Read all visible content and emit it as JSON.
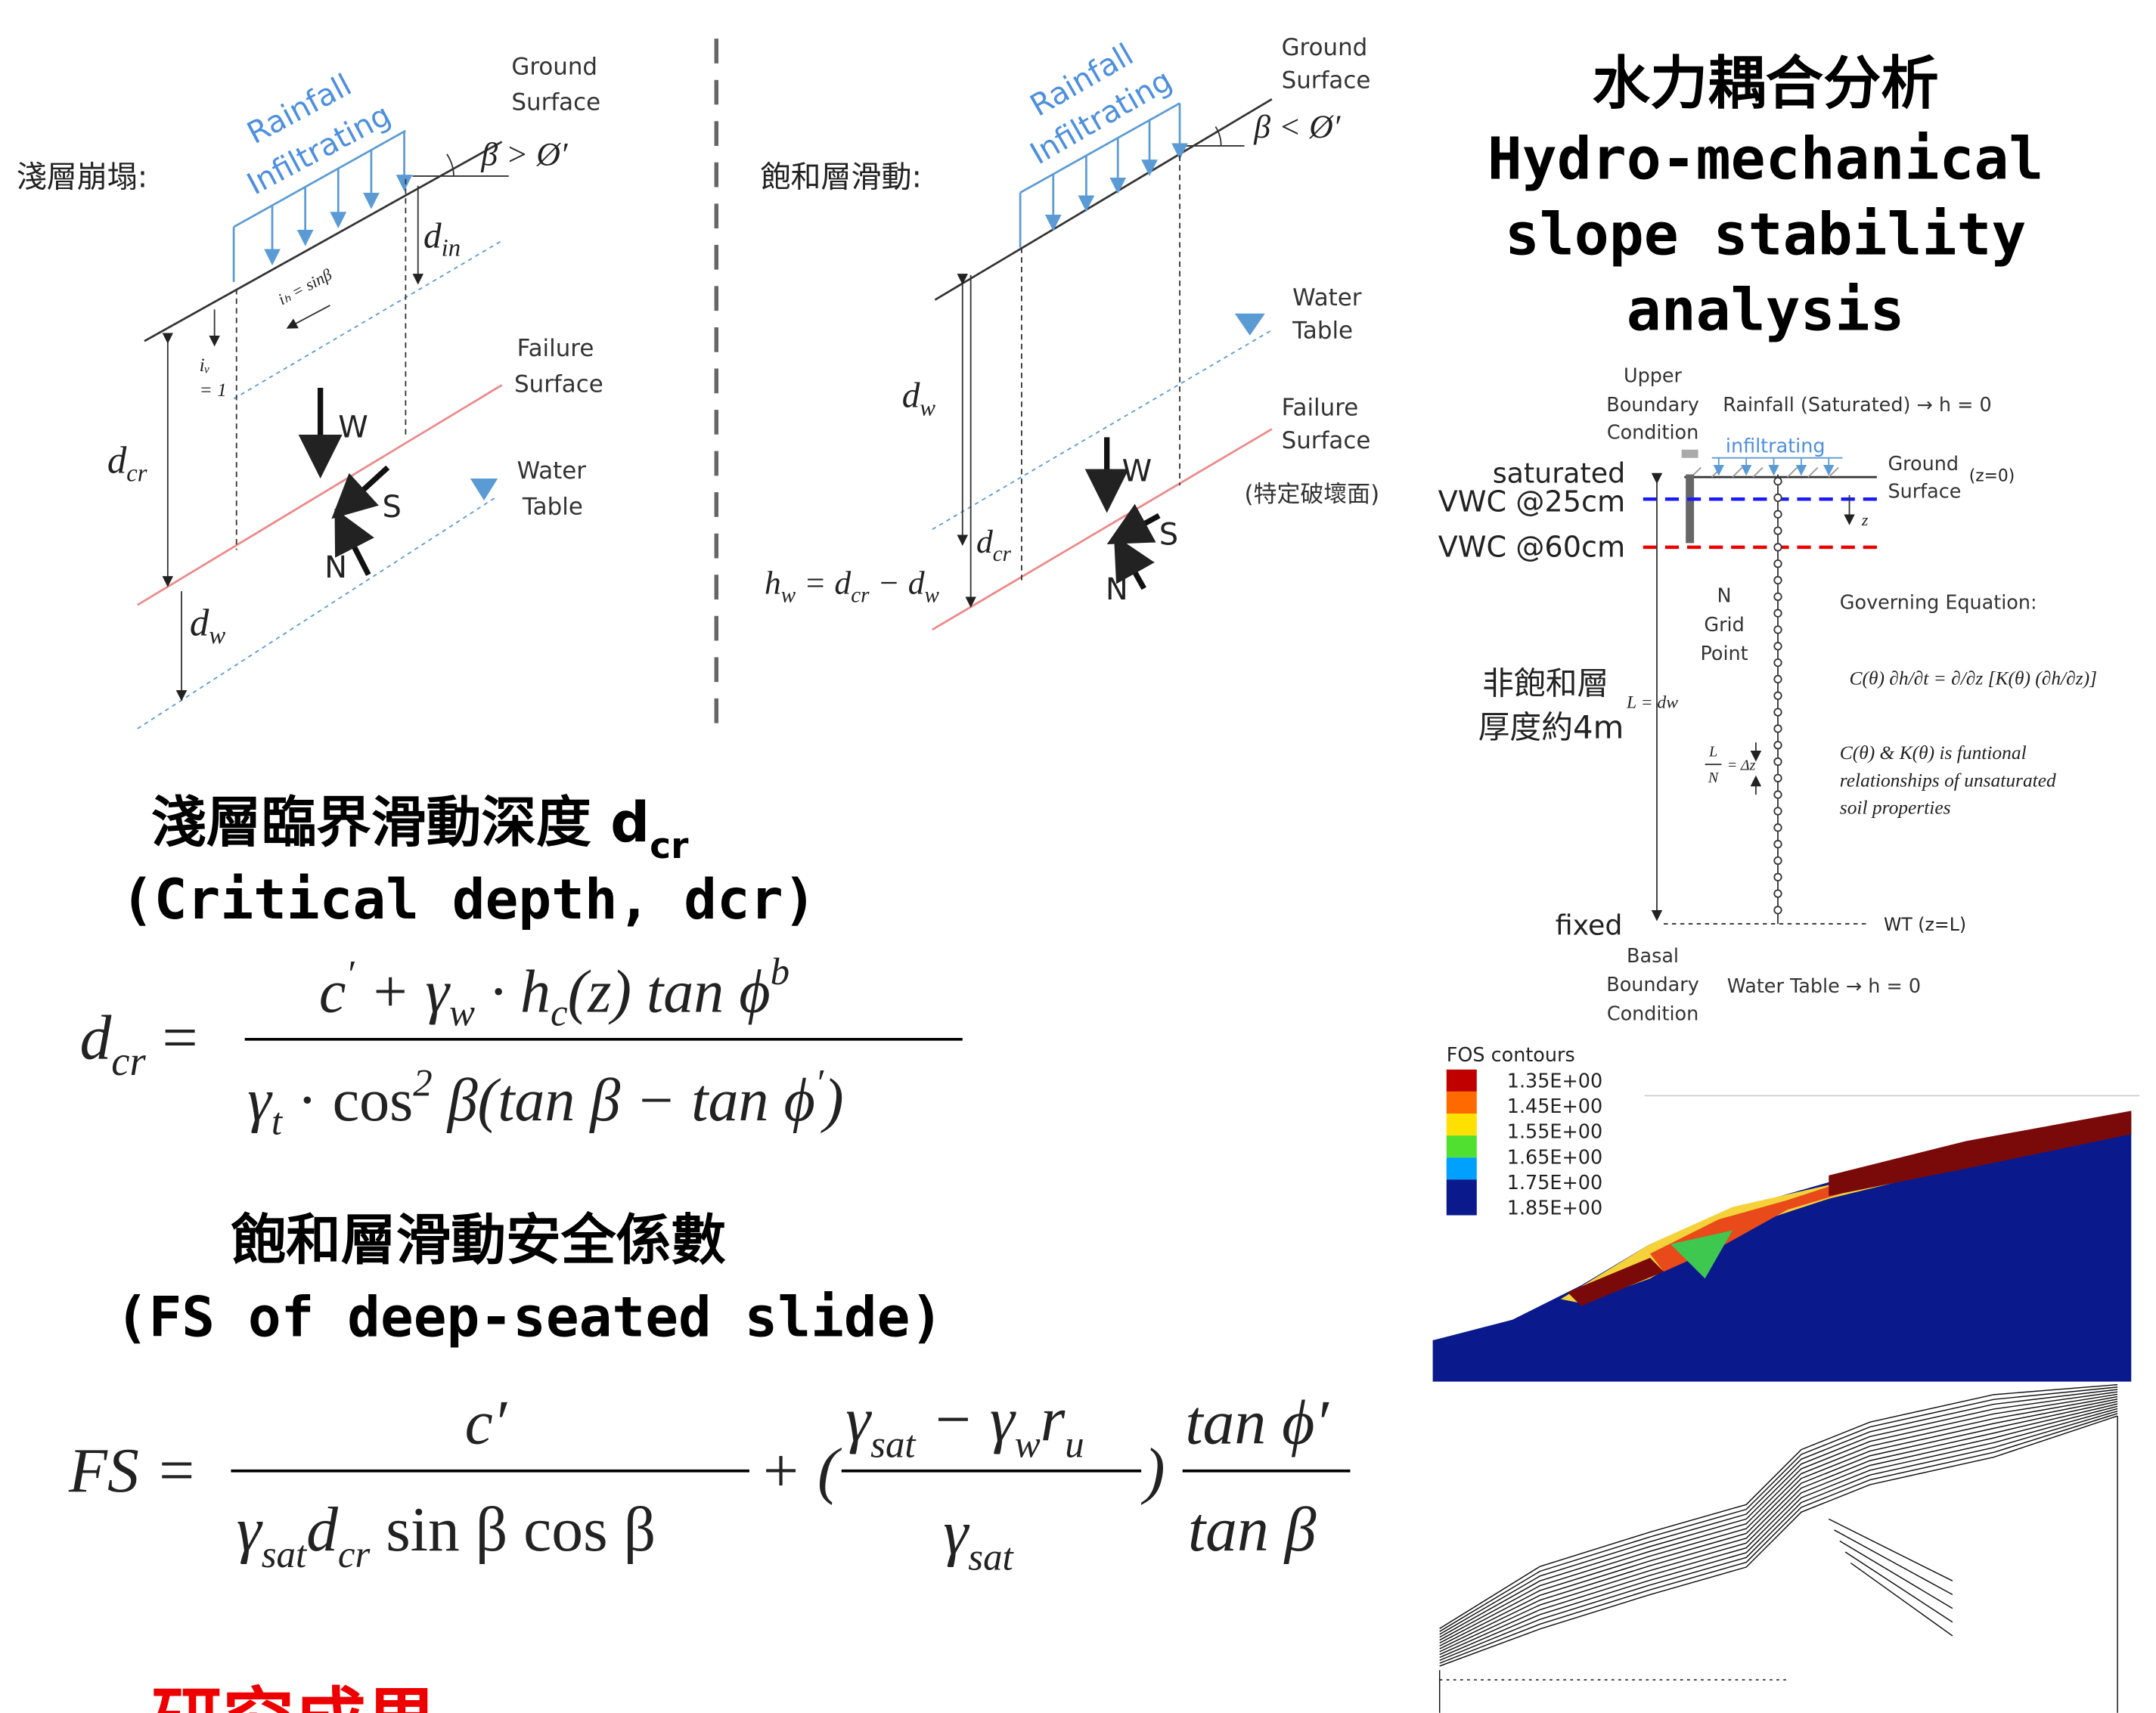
{
  "shallow_diagram": {
    "label": "淺層崩塌:",
    "rainfall": "Rainfall",
    "infiltrating": "Infiltrating",
    "ground": "Ground",
    "surface": "Surface",
    "angle": "β > Ø′",
    "d_in": [
      "d",
      "in"
    ],
    "i_h": "iₕ = sinβ",
    "i_v": [
      "iᵥ",
      "= 1"
    ],
    "failure": "Failure",
    "failure_surface": "Surface",
    "water": "Water",
    "table": "Table",
    "w": "W",
    "s": "S",
    "n": "N",
    "d_cr": [
      "d",
      "cr"
    ],
    "d_w": [
      "d",
      "w"
    ]
  },
  "saturated_diagram": {
    "label": "飽和層滑動:",
    "rainfall": "Rainfall",
    "infiltrating": "Infiltrating",
    "ground": "Ground",
    "surface": "Surface",
    "angle": "β < Ø′",
    "water": "Water",
    "table": "Table",
    "failure": "Failure",
    "failure_surface": "Surface",
    "specific": "(特定破壞面)",
    "d_w": [
      "d",
      "w"
    ],
    "d_cr": [
      "d",
      "cr"
    ],
    "w": "W",
    "s": "S",
    "n": "N",
    "h_w": [
      "h",
      "w",
      " = d",
      "cr",
      " − d",
      "w"
    ]
  },
  "title": [
    "水力耦合分析",
    "Hydro-mechanical",
    "slope stability",
    "analysis"
  ],
  "column_model": {
    "upper": [
      "Upper",
      "Boundary",
      "Condition"
    ],
    "rainfall": "Rainfall (Saturated) → h = 0",
    "infiltrating": "infiltrating",
    "ground": [
      "Ground",
      "Surface"
    ],
    "z0": "(z=0)",
    "saturated": "saturated",
    "vwc25": "VWC @25cm",
    "vwc60": "VWC @60cm",
    "z": "z",
    "grid": [
      "N",
      "Grid",
      "Point"
    ],
    "governing": "Governing Equation:",
    "equation": "C(θ) ∂h/∂t = ∂/∂z [K(θ) (∂h/∂z)]",
    "unsat": [
      "非飽和層",
      "厚度約4m"
    ],
    "l_dw": "L = dw",
    "dz": [
      "L",
      "N",
      "= Δz"
    ],
    "note": [
      "C(θ) & K(θ) is funtional",
      "relationships of unsaturated",
      "soil properties"
    ],
    "fixed": "fixed",
    "wt": "WT (z=L)",
    "basal": [
      "Basal",
      "Boundary",
      "Condition"
    ],
    "water_table": "Water Table → h = 0"
  },
  "fos": {
    "title": "FOS contours",
    "levels": [
      "1.35E+00",
      "1.45E+00",
      "1.55E+00",
      "1.65E+00",
      "1.75E+00",
      "1.85E+00"
    ]
  },
  "critical": {
    "heading": [
      "淺層臨界滑動深度 d",
      "cr"
    ],
    "subheading": "(Critical depth, dcr)",
    "lhs": [
      "d",
      "cr",
      "="
    ],
    "num": [
      "c",
      "′",
      " + γ",
      "w",
      " · h",
      "c",
      "(z) tan ϕ",
      "b"
    ],
    "den": [
      "γ",
      "t",
      " · cos",
      "2",
      " β(tan β − tan ϕ",
      "′",
      ")"
    ]
  },
  "fs": {
    "heading": "飽和層滑動安全係數",
    "subheading": "(FS of deep-seated slide)",
    "lhs": "FS =",
    "t1_num": "c′",
    "t1_den": [
      "γ",
      "sat",
      "d",
      "cr",
      " sin β cos β"
    ],
    "plus": "+ (",
    "t2_num": [
      "γ",
      "sat",
      " − γ",
      "w",
      "r",
      "u"
    ],
    "t2_den": [
      "γ",
      "sat"
    ],
    "close": ")",
    "t3_num": "tan ϕ′",
    "t3_den": "tan β"
  },
  "footer": "研究成果"
}
